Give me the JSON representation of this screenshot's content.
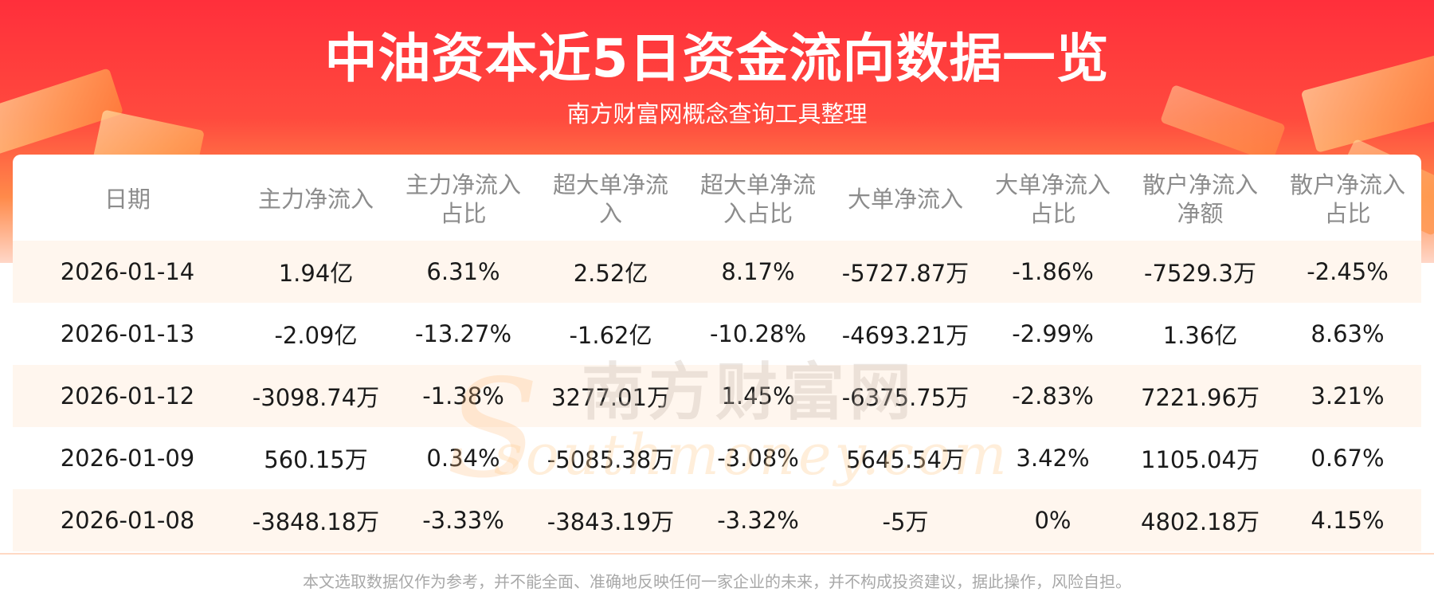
{
  "header": {
    "title": "中油资本近5日资金流向数据一览",
    "subtitle": "南方财富网概念查询工具整理"
  },
  "watermark": {
    "cn": "南方财富网",
    "en": "southmoney.com"
  },
  "table": {
    "columns": [
      "日期",
      "主力净流入",
      "主力净流入\n占比",
      "超大单净流\n入",
      "超大单净流\n入占比",
      "大单净流入",
      "大单净流入\n占比",
      "散户净流入\n净额",
      "散户净流入\n占比"
    ],
    "rows": [
      [
        "2026-01-14",
        "1.94亿",
        "6.31%",
        "2.52亿",
        "8.17%",
        "-5727.87万",
        "-1.86%",
        "-7529.3万",
        "-2.45%"
      ],
      [
        "2026-01-13",
        "-2.09亿",
        "-13.27%",
        "-1.62亿",
        "-10.28%",
        "-4693.21万",
        "-2.99%",
        "1.36亿",
        "8.63%"
      ],
      [
        "2026-01-12",
        "-3098.74万",
        "-1.38%",
        "3277.01万",
        "1.45%",
        "-6375.75万",
        "-2.83%",
        "7221.96万",
        "3.21%"
      ],
      [
        "2026-01-09",
        "560.15万",
        "0.34%",
        "-5085.38万",
        "-3.08%",
        "5645.54万",
        "3.42%",
        "1105.04万",
        "0.67%"
      ],
      [
        "2026-01-08",
        "-3848.18万",
        "-3.33%",
        "-3843.19万",
        "-3.32%",
        "-5万",
        "0%",
        "4802.18万",
        "4.15%"
      ]
    ]
  },
  "footer": {
    "disclaimer": "本文选取数据仅作为参考，并不能全面、准确地反映任何一家企业的未来，并不构成投资建议，据此操作，风险自担。"
  }
}
